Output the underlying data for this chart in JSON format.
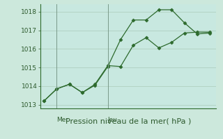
{
  "line1_x": [
    0,
    1,
    2,
    3,
    4,
    5,
    6,
    7,
    8,
    9,
    10,
    11,
    12,
    13
  ],
  "line1_y": [
    1013.2,
    1013.85,
    1014.1,
    1013.65,
    1014.05,
    1015.05,
    1016.5,
    1017.55,
    1017.55,
    1018.1,
    1018.1,
    1017.4,
    1016.8,
    1016.85
  ],
  "line2_x": [
    0,
    1,
    2,
    3,
    4,
    5,
    6,
    7,
    8,
    9,
    10,
    11,
    12,
    13
  ],
  "line2_y": [
    1013.2,
    1013.85,
    1014.1,
    1013.65,
    1014.1,
    1015.1,
    1015.05,
    1016.2,
    1016.6,
    1016.05,
    1016.35,
    1016.85,
    1016.9,
    1016.9
  ],
  "line_color": "#2d6a2d",
  "bg_color": "#cce8dc",
  "plot_bg_color": "#c8e8e0",
  "grid_color": "#aacaba",
  "axis_color": "#2d6a2d",
  "text_color": "#2d5a2d",
  "ylim": [
    1012.8,
    1018.4
  ],
  "yticks": [
    1013,
    1014,
    1015,
    1016,
    1017,
    1018
  ],
  "xlabel": "Pression niveau de la mer( hPa )",
  "xtick_labels": [
    "Mer",
    "Jeu"
  ],
  "xtick_positions": [
    1.0,
    5.0
  ],
  "vline_positions": [
    1.0,
    5.0
  ],
  "xlim": [
    -0.3,
    13.5
  ],
  "tick_fontsize": 6.5,
  "label_fontsize": 8
}
